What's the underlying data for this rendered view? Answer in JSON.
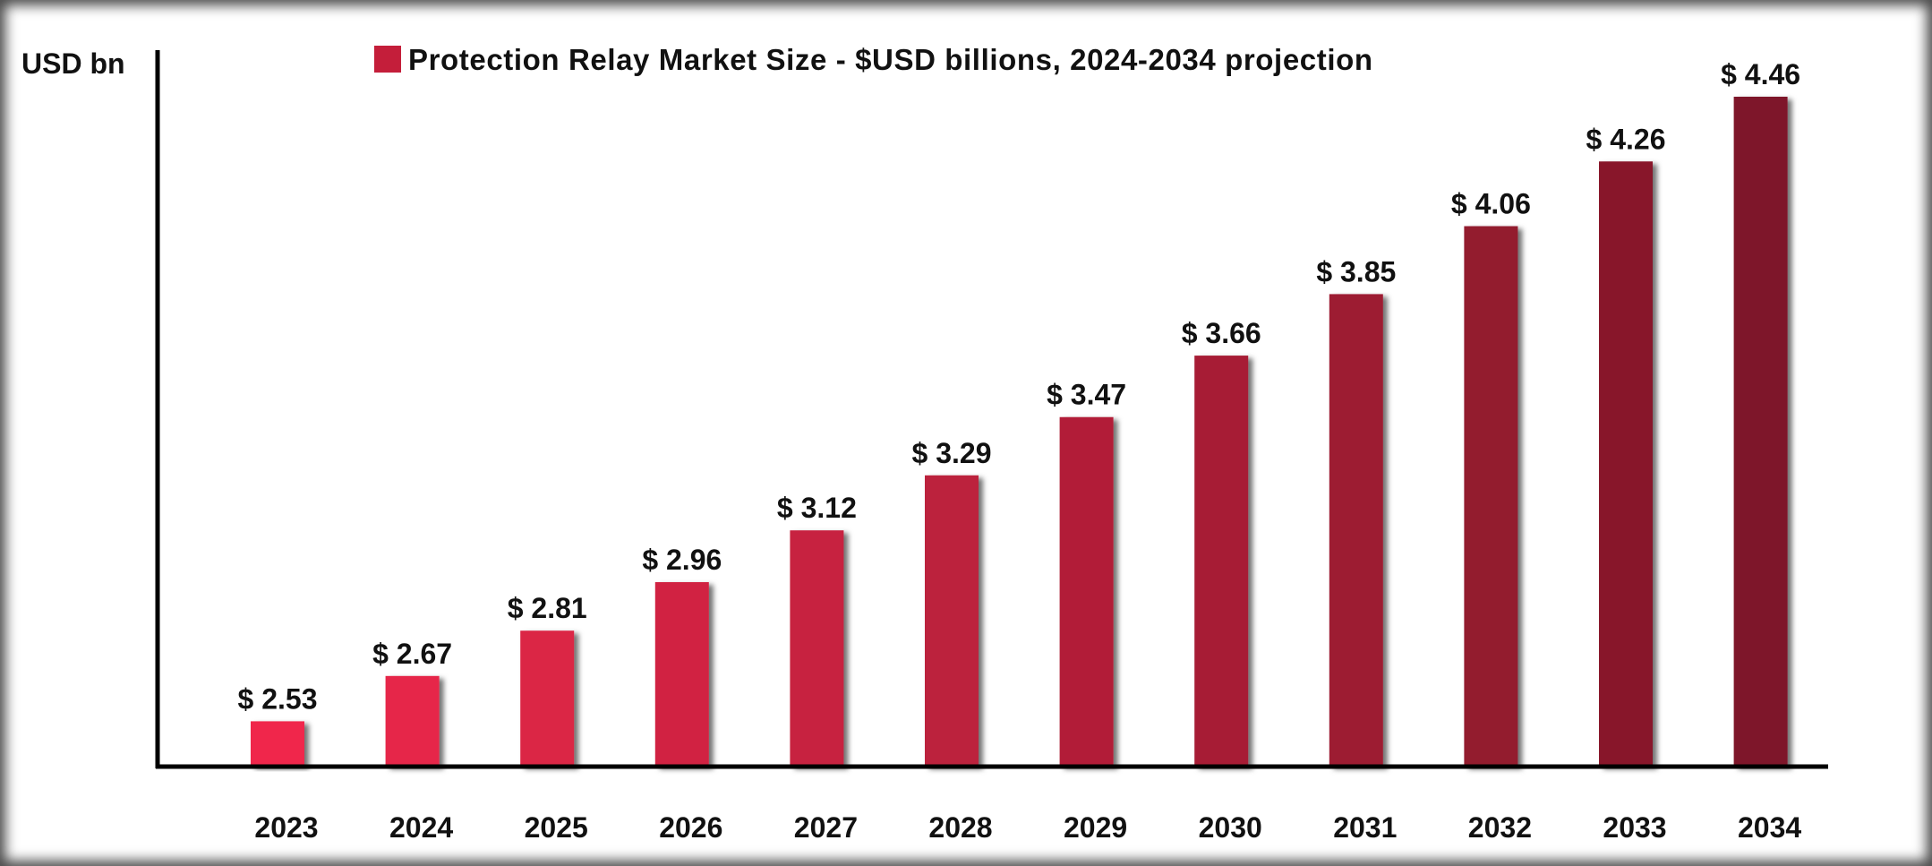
{
  "chart_data": {
    "type": "bar",
    "title": "Protection Relay Market Size - $USD billions, 2024-2034 projection",
    "ylabel": "USD bn",
    "xlabel": "",
    "categories": [
      "2023",
      "2024",
      "2025",
      "2026",
      "2027",
      "2028",
      "2029",
      "2030",
      "2031",
      "2032",
      "2033",
      "2034"
    ],
    "values": [
      2.53,
      2.67,
      2.81,
      2.96,
      3.12,
      3.29,
      3.47,
      3.66,
      3.85,
      4.06,
      4.26,
      4.46
    ],
    "data_labels": [
      "$ 2.53",
      "$ 2.67",
      "$ 2.81",
      "$ 2.96",
      "$ 3.12",
      "$ 3.29",
      "$ 3.47",
      "$ 3.66",
      "$ 3.85",
      "$ 4.06",
      "$ 4.26",
      "$ 4.46"
    ],
    "ylim": [
      2.39,
      4.6
    ],
    "grid": false,
    "legend": {
      "position": "top",
      "entries": [
        {
          "label": "Protection Relay Market Size - $USD billions, 2024-2034 projection",
          "color": "#c41e3a"
        }
      ]
    },
    "colors": {
      "start": "#f0284b",
      "end": "#7e1729",
      "legend": "#c41e3a",
      "axis": "#000000"
    }
  }
}
